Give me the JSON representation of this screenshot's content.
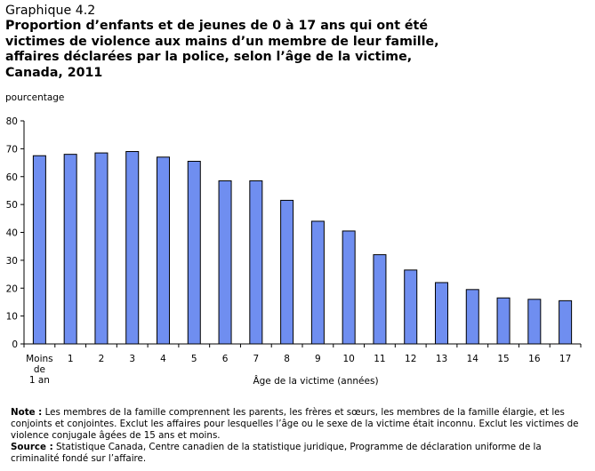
{
  "chart_data": {
    "type": "bar",
    "title": "Graphique 4.2",
    "subtitle_lines": [
      "Proportion d’enfants et de jeunes de 0 à 17 ans qui ont été",
      "victimes de violence aux mains d’un membre de leur famille,",
      "affaires déclarées par la police, selon l’âge de la victime,",
      "Canada, 2011"
    ],
    "ylabel": "pourcentage",
    "xlabel": "Âge de la victime (années)",
    "ylim": [
      0,
      80
    ],
    "yticks": [
      0,
      10,
      20,
      30,
      40,
      50,
      60,
      70,
      80
    ],
    "categories": [
      [
        "Moins",
        "de",
        "1 an"
      ],
      [
        "1"
      ],
      [
        "2"
      ],
      [
        "3"
      ],
      [
        "4"
      ],
      [
        "5"
      ],
      [
        "6"
      ],
      [
        "7"
      ],
      [
        "8"
      ],
      [
        "9"
      ],
      [
        "10"
      ],
      [
        "11"
      ],
      [
        "12"
      ],
      [
        "13"
      ],
      [
        "14"
      ],
      [
        "15"
      ],
      [
        "16"
      ],
      [
        "17"
      ]
    ],
    "values": [
      67.5,
      68,
      68.5,
      69,
      67,
      65.5,
      58.5,
      58.5,
      51.5,
      44,
      40.5,
      32,
      26.5,
      22,
      19.5,
      16.5,
      16,
      15.5
    ],
    "bar_color": "#6f8ef0",
    "grid": false,
    "legend": "none"
  },
  "notes": {
    "note_label": "Note :",
    "note_text": " Les membres de la famille comprennent les parents, les frères et sœurs, les membres de la famille élargie, et les conjoints et conjointes. Exclut les affaires pour lesquelles l’âge ou le sexe de la victime était inconnu. Exclut les victimes de violence conjugale âgées de 15 ans et moins.",
    "source_label": "Source :",
    "source_text": " Statistique Canada, Centre canadien de la statistique juridique, Programme de déclaration uniforme de la criminalité fondé sur l’affaire."
  }
}
